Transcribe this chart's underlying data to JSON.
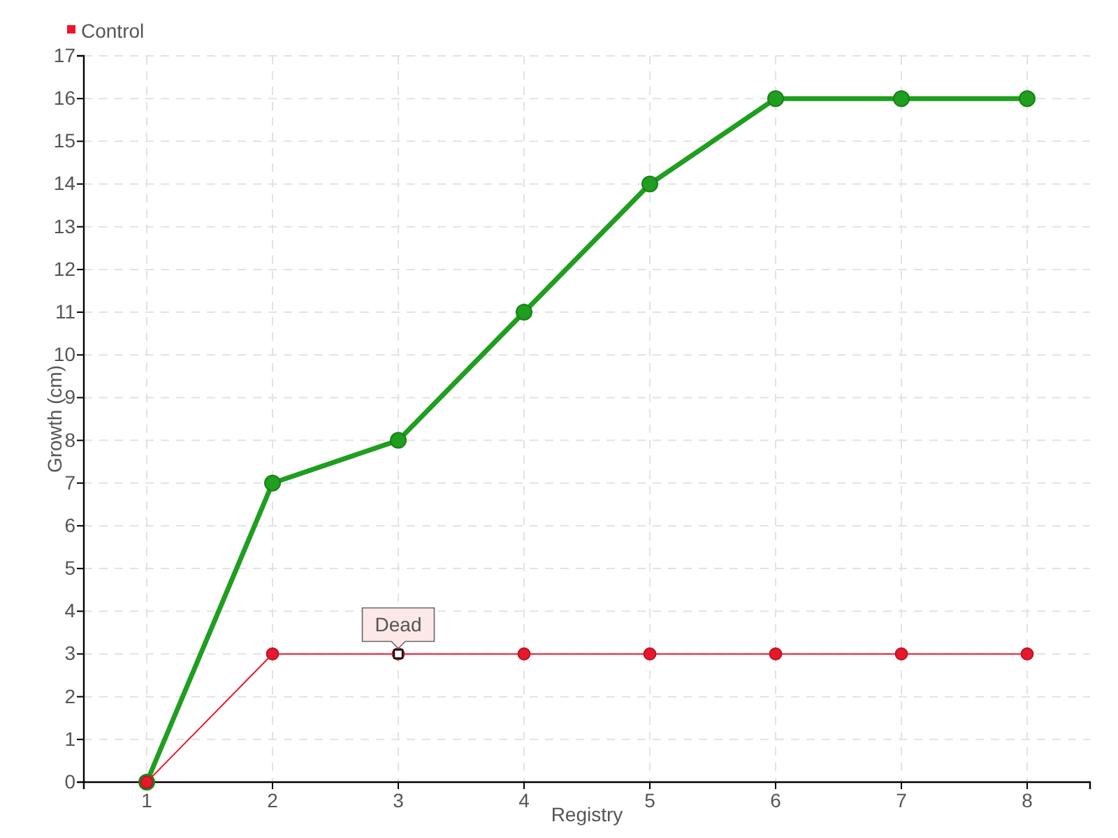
{
  "chart_data": {
    "type": "line",
    "xlabel": "Registry",
    "ylabel": "Growth (cm)",
    "categories": [
      "1",
      "2",
      "3",
      "4",
      "5",
      "6",
      "7",
      "8"
    ],
    "series": [
      {
        "color": "#1f9e1f",
        "values": [
          0,
          7,
          8,
          11,
          14,
          16,
          16,
          16
        ]
      },
      {
        "name": "Control",
        "color": "#e8182c",
        "values": [
          0,
          3,
          3,
          3,
          3,
          3,
          3,
          3
        ]
      }
    ],
    "ylim": [
      0,
      17
    ],
    "yticks": [
      0,
      1,
      2,
      3,
      4,
      5,
      6,
      7,
      8,
      9,
      10,
      11,
      12,
      13,
      14,
      15,
      16,
      17
    ],
    "grid": true,
    "legend": "top left",
    "marker": "circle",
    "line_style": "solid",
    "annotations": [
      {
        "text": "Dead",
        "x": "3",
        "y": 3
      }
    ]
  }
}
